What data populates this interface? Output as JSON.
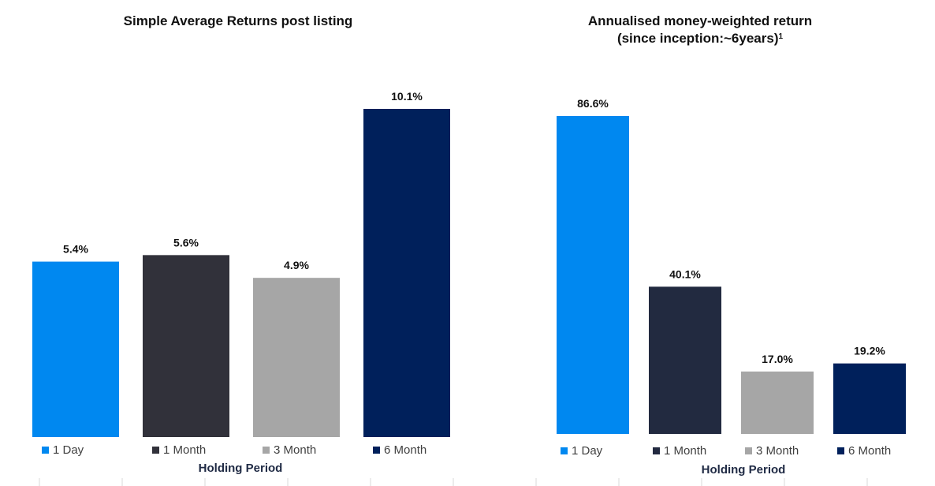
{
  "chart_data": [
    {
      "type": "bar",
      "title": "Simple Average Returns post listing",
      "xlabel": "Holding Period",
      "ylabel": "",
      "ylim": [
        0,
        10.1
      ],
      "categories": [
        "1 Day",
        "1 Month",
        "3 Month",
        "6 Month"
      ],
      "values": [
        5.4,
        5.6,
        4.9,
        10.1
      ],
      "data_labels": [
        "5.4%",
        "5.6%",
        "4.9%",
        "10.1%"
      ],
      "colors": [
        "#0088f0",
        "#31313a",
        "#a6a6a6",
        "#00205b"
      ],
      "legend": "bottom",
      "grid": false
    },
    {
      "type": "bar",
      "title_lines": [
        "Annualised money-weighted return",
        "(since inception:~6years)"
      ],
      "title_footnote": "1",
      "xlabel": "Holding Period",
      "ylabel": "",
      "ylim": [
        0,
        86.6
      ],
      "categories": [
        "1 Day",
        "1 Month",
        "3 Month",
        "6 Month"
      ],
      "values": [
        86.6,
        40.1,
        17.0,
        19.2
      ],
      "data_labels": [
        "86.6%",
        "40.1%",
        "17.0%",
        "19.2%"
      ],
      "colors": [
        "#0088f0",
        "#222a40",
        "#a6a6a6",
        "#00205b"
      ],
      "legend": "bottom",
      "grid": false
    }
  ]
}
